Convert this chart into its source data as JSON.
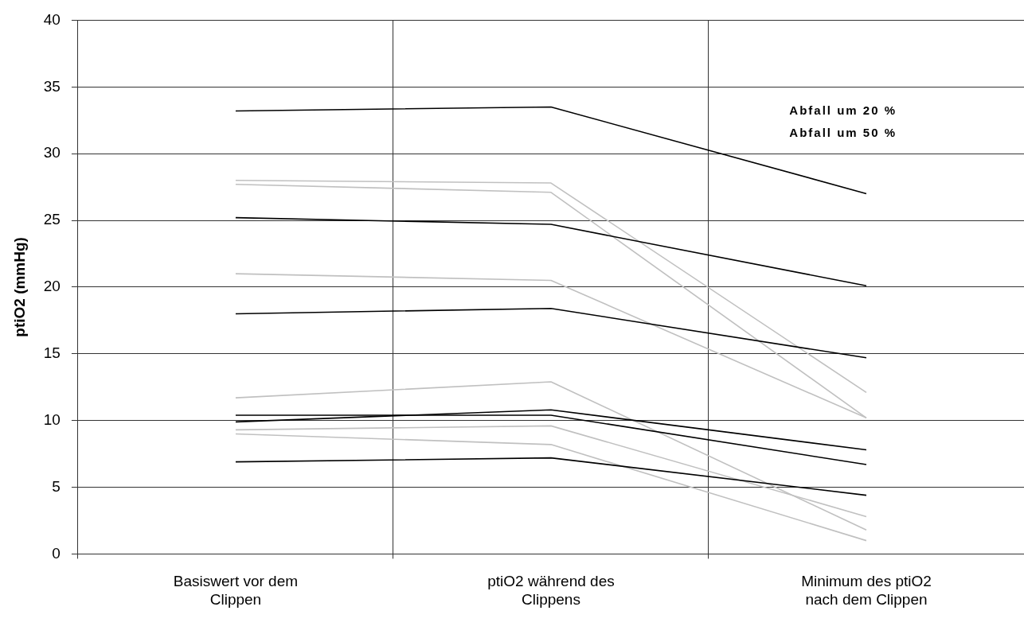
{
  "chart_data": {
    "type": "line",
    "categories": [
      "Basiswert vor dem Clippen",
      "ptiO2 während des Clippens",
      "Minimum des ptiO2 nach dem Clippen"
    ],
    "ylabel": "ptiO2 (mmHg)",
    "ylim": [
      0,
      40
    ],
    "yticks": [
      0,
      5,
      10,
      15,
      20,
      25,
      30,
      35,
      40
    ],
    "grid": true,
    "legend": false,
    "marker": "none",
    "annotations": [
      "Abfall um 20 %",
      "Abfall um 50 %"
    ],
    "series": [
      {
        "color": "#000000",
        "values": [
          33.2,
          33.5,
          27.0
        ]
      },
      {
        "color": "#000000",
        "values": [
          25.2,
          24.7,
          20.1
        ]
      },
      {
        "color": "#000000",
        "values": [
          18.0,
          18.4,
          14.7
        ]
      },
      {
        "color": "#000000",
        "values": [
          9.9,
          10.8,
          7.8
        ]
      },
      {
        "color": "#000000",
        "values": [
          10.4,
          10.4,
          6.7
        ]
      },
      {
        "color": "#000000",
        "values": [
          6.9,
          7.2,
          4.4
        ]
      },
      {
        "color": "#c0c0c0",
        "values": [
          28.0,
          27.8,
          12.1
        ]
      },
      {
        "color": "#c0c0c0",
        "values": [
          27.7,
          27.1,
          10.2
        ]
      },
      {
        "color": "#c0c0c0",
        "values": [
          21.0,
          20.5,
          10.2
        ]
      },
      {
        "color": "#c0c0c0",
        "values": [
          11.7,
          12.9,
          1.8
        ]
      },
      {
        "color": "#c0c0c0",
        "values": [
          9.3,
          9.6,
          2.8
        ]
      },
      {
        "color": "#c0c0c0",
        "values": [
          9.0,
          8.2,
          1.0
        ]
      }
    ]
  }
}
